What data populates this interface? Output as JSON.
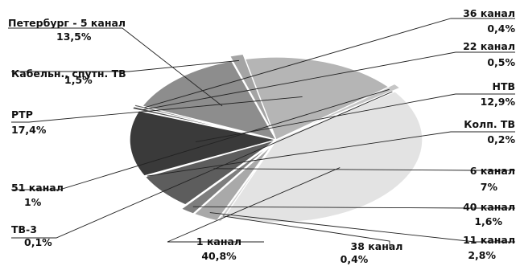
{
  "chart_data": {
    "type": "pie",
    "title": "",
    "slices": [
      {
        "label": "1 канал",
        "value": 40.8,
        "value_label": "40,8%",
        "color": "#e3e3e3"
      },
      {
        "label": "ТВ-3",
        "value": 0.1,
        "value_label": "0,1%",
        "color": "#bdbdbd"
      },
      {
        "label": "51 канал",
        "value": 1.0,
        "value_label": "1%",
        "color": "#c6c6c6"
      },
      {
        "label": "РТР",
        "value": 17.4,
        "value_label": "17,4%",
        "color": "#b5b5b5"
      },
      {
        "label": "Кабельн., спутн. ТВ",
        "value": 1.5,
        "value_label": "1,5%",
        "color": "#a4a4a4"
      },
      {
        "label": "Петербург - 5 канал",
        "value": 13.5,
        "value_label": "13,5%",
        "color": "#8d8d8d"
      },
      {
        "label": "36 канал",
        "value": 0.4,
        "value_label": "0,4%",
        "color": "#666666"
      },
      {
        "label": "22 канал",
        "value": 0.5,
        "value_label": "0,5%",
        "color": "#4a4a4a"
      },
      {
        "label": "НТВ",
        "value": 12.9,
        "value_label": "12,9%",
        "color": "#3a3a3a"
      },
      {
        "label": "Колп. ТВ",
        "value": 0.2,
        "value_label": "0,2%",
        "color": "#2a2a2a"
      },
      {
        "label": "6 канал",
        "value": 7.0,
        "value_label": "7%",
        "color": "#5d5d5d"
      },
      {
        "label": "40 канал",
        "value": 1.6,
        "value_label": "1,6%",
        "color": "#7e7e7e"
      },
      {
        "label": "11 канал",
        "value": 2.8,
        "value_label": "2,8%",
        "color": "#a9a9a9"
      },
      {
        "label": "38 канал",
        "value": 0.4,
        "value_label": "0,4%",
        "color": "#cfcfcf"
      }
    ]
  }
}
